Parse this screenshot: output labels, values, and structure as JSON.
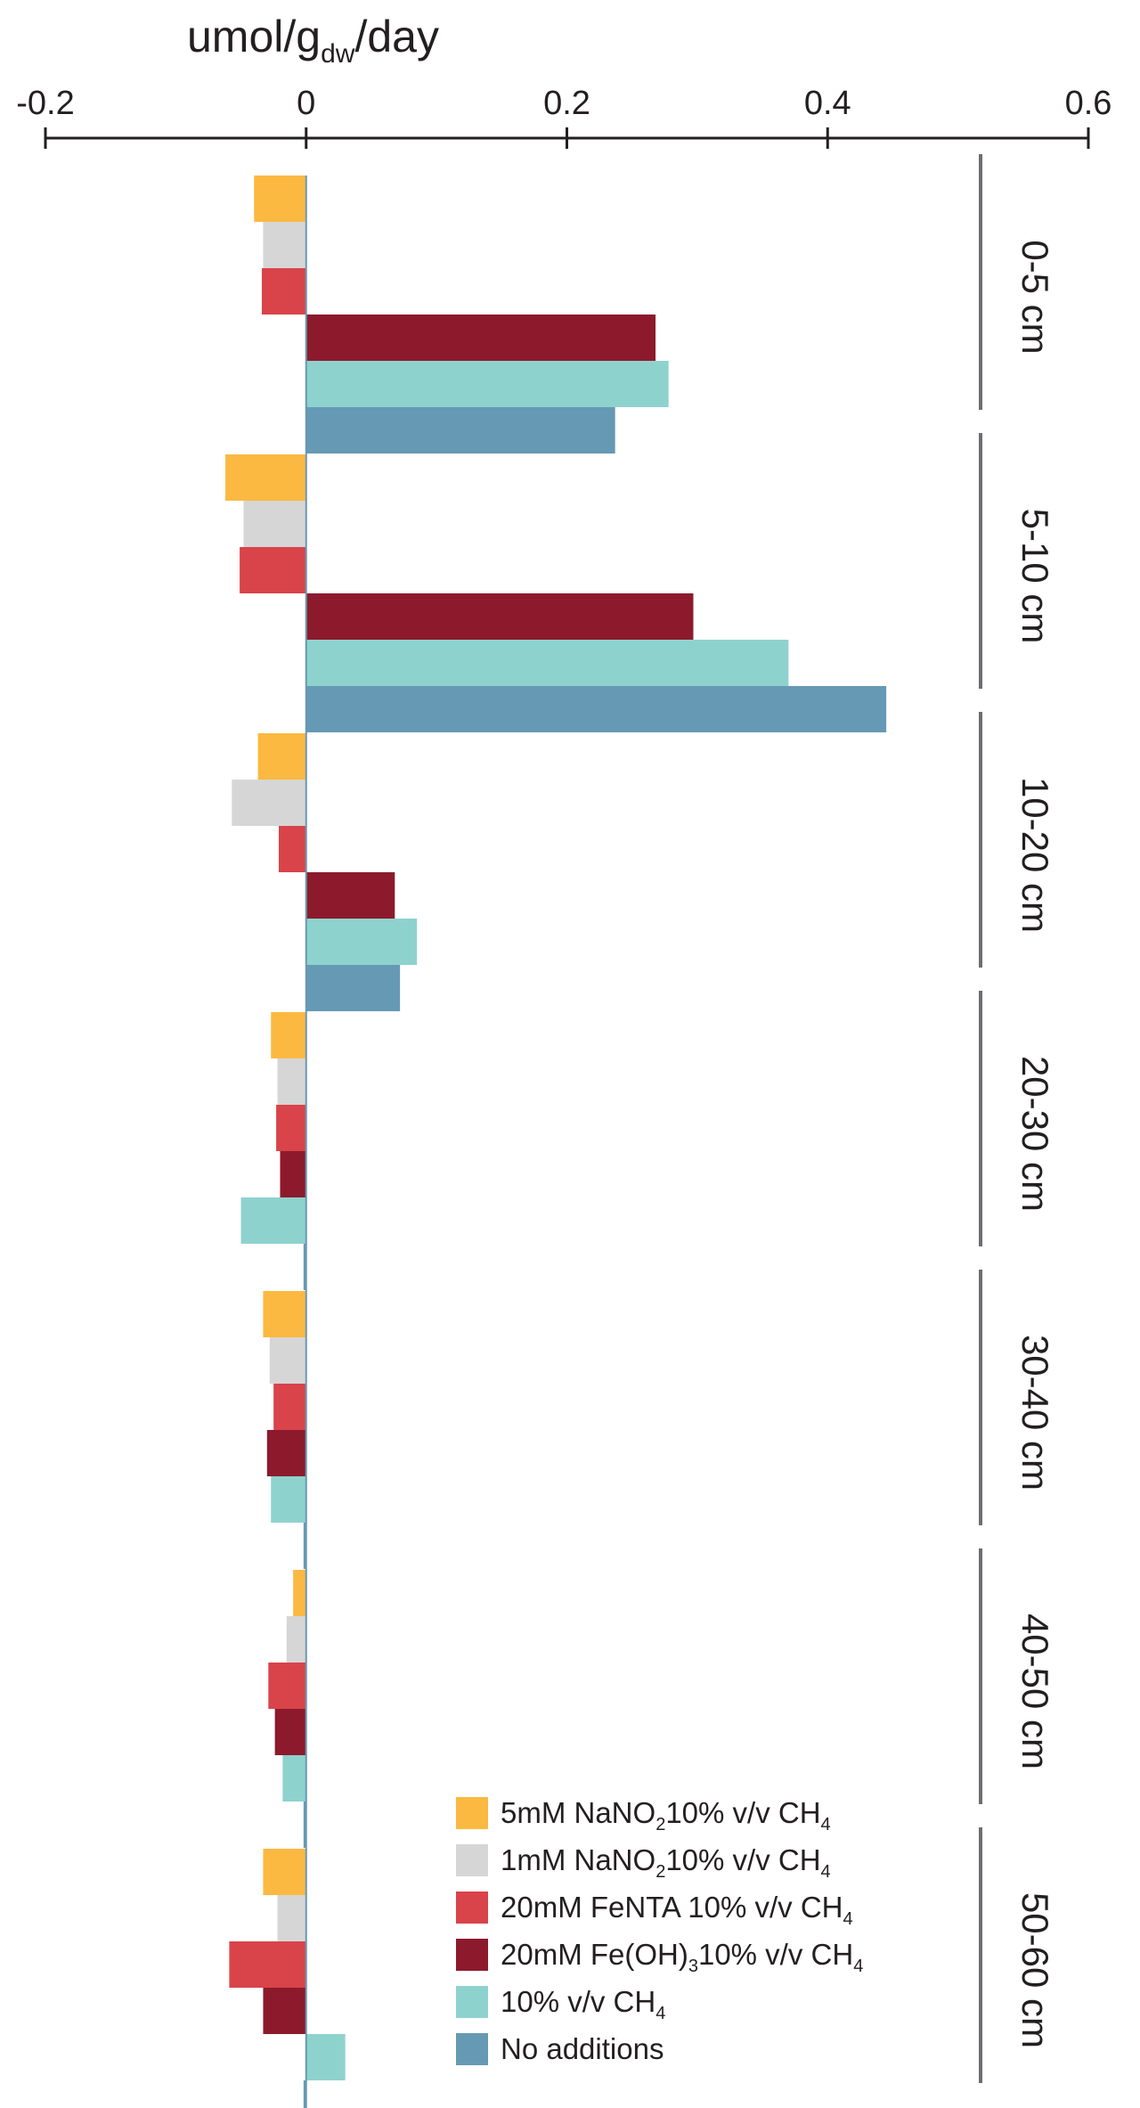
{
  "chart_data": {
    "type": "bar",
    "orientation": "horizontal",
    "xlim": [
      -0.2,
      0.6
    ],
    "x_ticks": [
      "-0.2",
      "0",
      "0.2",
      "0.4",
      "0.6"
    ],
    "x_tick_values": [
      -0.2,
      0,
      0.2,
      0.4,
      0.6
    ],
    "unit": {
      "main": "umol/g",
      "sub": "dw",
      "tail": "/day"
    },
    "categories": [
      "0-5 cm",
      "5-10 cm",
      "10-20 cm",
      "20-30 cm",
      "30-40 cm",
      "40-50 cm",
      "50-60 cm"
    ],
    "legend_position": "bottom-right",
    "series": [
      {
        "label": {
          "main": "5mM NaNO",
          "sub": "2",
          "mid": "10% v/v CH",
          "sub2": "4"
        },
        "color": "#fbb941",
        "values": [
          -0.04,
          -0.062,
          -0.037,
          -0.027,
          -0.033,
          -0.01,
          -0.033
        ]
      },
      {
        "label": {
          "main": "1mM NaNO",
          "sub": "2",
          "mid": "10% v/v CH",
          "sub2": "4"
        },
        "color": "#d6d6d6",
        "values": [
          -0.033,
          -0.048,
          -0.057,
          -0.022,
          -0.028,
          -0.015,
          -0.022
        ]
      },
      {
        "label": {
          "main": "20mM FeNTA 10% v/v CH",
          "sub": "",
          "mid": "",
          "sub2": "4"
        },
        "color": "#d9434a",
        "values": [
          -0.034,
          -0.051,
          -0.021,
          -0.023,
          -0.025,
          -0.029,
          -0.059
        ]
      },
      {
        "label": {
          "main": "20mM Fe(OH)",
          "sub": "3",
          "mid": "10% v/v CH",
          "sub2": "4"
        },
        "color": "#8c1a2c",
        "values": [
          0.268,
          0.297,
          0.068,
          -0.02,
          -0.03,
          -0.024,
          -0.033
        ]
      },
      {
        "label": {
          "main": "10% v/v CH",
          "sub": "",
          "mid": "",
          "sub2": "4"
        },
        "color": "#8ed2ce",
        "values": [
          0.278,
          0.37,
          0.085,
          -0.05,
          -0.027,
          -0.018,
          0.03
        ]
      },
      {
        "label": {
          "main": "No additions",
          "sub": "",
          "mid": "",
          "sub2": ""
        },
        "color": "#6699b3",
        "values": [
          0.237,
          0.445,
          0.072,
          -0.002,
          -0.002,
          -0.002,
          -0.002
        ]
      }
    ]
  }
}
